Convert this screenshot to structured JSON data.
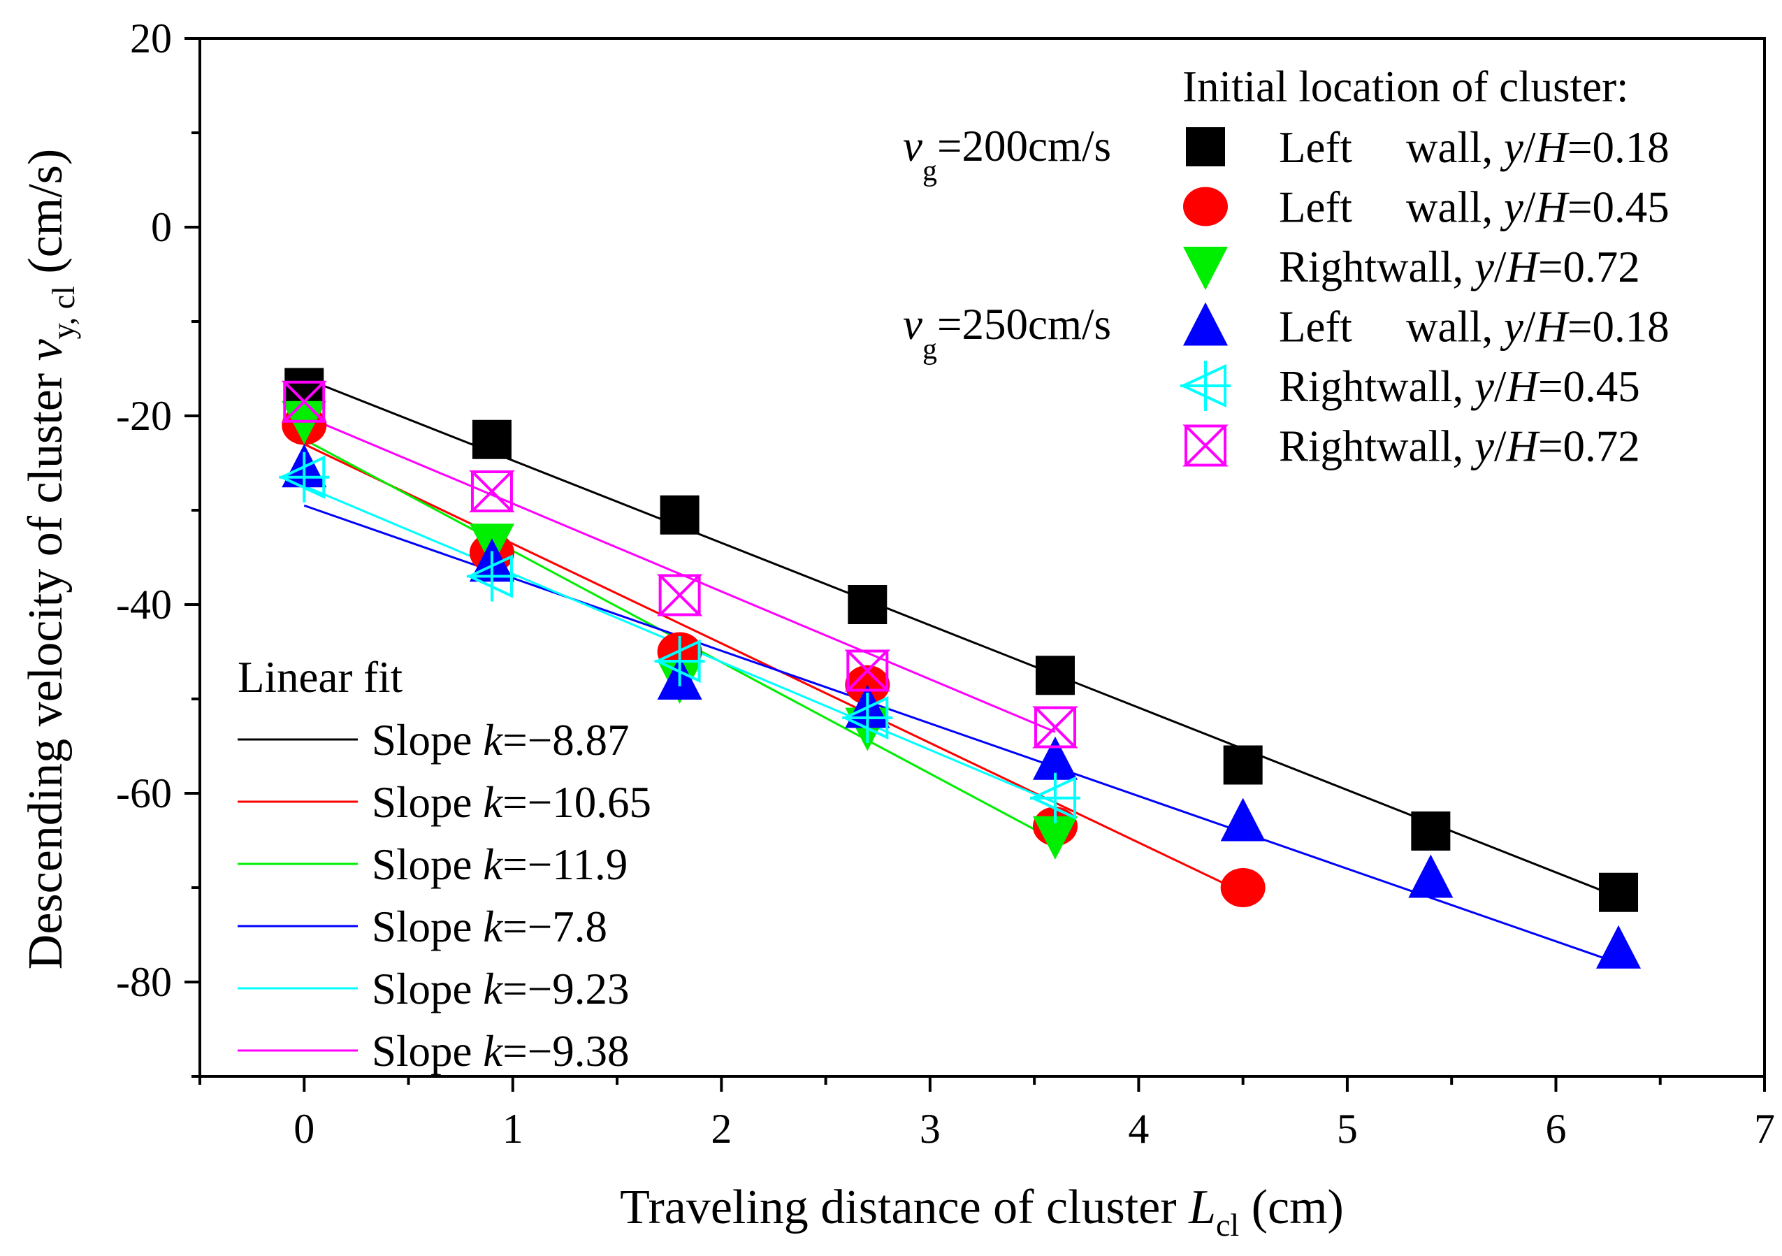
{
  "chart_data": {
    "type": "scatter",
    "xlabel": "Traveling distance of cluster",
    "xlabel_var": "L",
    "xlabel_sub": "cl",
    "xlabel_unit": "(cm)",
    "ylabel": "Descending velocity of cluster",
    "ylabel_var": "v",
    "ylabel_sub": "y, cl",
    "ylabel_unit": "(cm/s)",
    "xlim": [
      -0.5,
      7
    ],
    "ylim": [
      -90,
      20
    ],
    "xticks": [
      0,
      1,
      2,
      3,
      4,
      5,
      6,
      7
    ],
    "yticks": [
      20,
      0,
      -20,
      -40,
      -60,
      -80
    ],
    "legend_title": "Initial location of cluster:",
    "group_labels": [
      {
        "var": "v",
        "sub": "g",
        "text": "=200cm/s"
      },
      {
        "var": "v",
        "sub": "g",
        "text": "=250cm/s"
      }
    ],
    "fit_legend_title": "Linear fit",
    "series": [
      {
        "name": "Left wall, y/H=0.18",
        "wall": "Left",
        "ratio_var": "y/H",
        "ratio": "=0.18",
        "marker": "square",
        "color": "#000000",
        "x": [
          0,
          0.9,
          1.8,
          2.7,
          3.6,
          4.5,
          5.4,
          6.3
        ],
        "y": [
          -17,
          -22.5,
          -30.5,
          -40,
          -47.5,
          -57,
          -64,
          -70.5
        ],
        "fit": {
          "slope_text": "−8.87",
          "x0": 0,
          "y0": -16,
          "x1": 6.3,
          "y1": -71
        }
      },
      {
        "name": "Left wall, y/H=0.45",
        "wall": "Left",
        "ratio_var": "y/H",
        "ratio": "=0.45",
        "marker": "circle",
        "color": "#ff0000",
        "x": [
          0,
          0.9,
          1.8,
          2.7,
          3.6,
          4.5
        ],
        "y": [
          -21,
          -34.5,
          -45,
          -48.5,
          -63.5,
          -70
        ],
        "fit": {
          "slope_text": "−10.65",
          "x0": 0,
          "y0": -23,
          "x1": 4.5,
          "y1": -70.5
        }
      },
      {
        "name": "Right wall, y/H=0.72",
        "wall": "Right",
        "ratio_var": "y/H",
        "ratio": "=0.72",
        "marker": "triangle-down",
        "color": "#00ee00",
        "x": [
          0,
          0.9,
          1.8,
          2.7,
          3.6
        ],
        "y": [
          -20.5,
          -33.5,
          -48,
          -53,
          -64.5
        ],
        "fit": {
          "slope_text": "−11.9",
          "x0": 0,
          "y0": -22.5,
          "x1": 3.6,
          "y1": -65
        }
      },
      {
        "name": "Left wall, y/H=0.18",
        "wall": "Left",
        "ratio_var": "y/H",
        "ratio": "=0.18",
        "marker": "triangle-up",
        "color": "#0000ff",
        "x": [
          0,
          0.9,
          1.8,
          2.7,
          3.6,
          4.5,
          5.4,
          6.3
        ],
        "y": [
          -25.5,
          -35.5,
          -48,
          -51,
          -56.5,
          -63,
          -69,
          -76.5
        ],
        "fit": {
          "slope_text": "−7.8",
          "x0": 0,
          "y0": -29.5,
          "x1": 6.3,
          "y1": -78
        }
      },
      {
        "name": "Right wall, y/H=0.45",
        "wall": "Right",
        "ratio_var": "y/H",
        "ratio": "=0.45",
        "marker": "triangle-left-plus",
        "color": "#00ffff",
        "x": [
          0,
          0.9,
          1.8,
          2.7,
          3.6
        ],
        "y": [
          -26.5,
          -37,
          -46,
          -52,
          -60.5
        ],
        "fit": {
          "slope_text": "−9.23",
          "x0": -0.1,
          "y0": -26.5,
          "x1": 3.6,
          "y1": -61
        }
      },
      {
        "name": "Right wall, y/H=0.72",
        "wall": "Right",
        "ratio_var": "y/H",
        "ratio": "=0.72",
        "marker": "bowtie-x",
        "color": "#ff00ff",
        "x": [
          0,
          0.9,
          1.8,
          2.7,
          3.6
        ],
        "y": [
          -18.5,
          -28,
          -39,
          -47,
          -53
        ],
        "fit": {
          "slope_text": "−9.38",
          "x0": 0,
          "y0": -20,
          "x1": 3.6,
          "y1": -53.5
        }
      }
    ]
  }
}
